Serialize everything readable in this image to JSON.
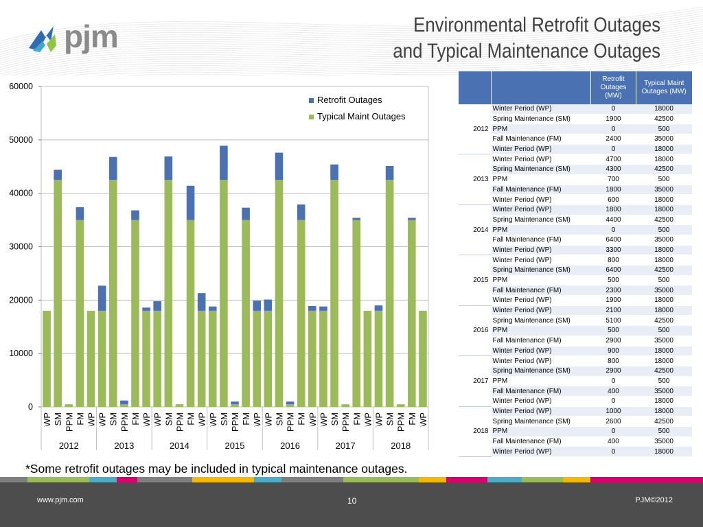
{
  "header": {
    "logo_text": "pjm",
    "title_line1": "Environmental Retrofit Outages",
    "title_line2": "and Typical Maintenance Outages"
  },
  "colors": {
    "retrofit": "#4a72b3",
    "maint": "#9bbb59",
    "footer": "#4d4d4d",
    "stripe": [
      "#7f7f7f",
      "#9bbb59",
      "#4bacc6",
      "#d7006f",
      "#7f7f7f",
      "#f5b800",
      "#4bacc6",
      "#7f7f7f",
      "#9bbb59",
      "#f5b800",
      "#d7006f",
      "#4bacc6",
      "#9bbb59",
      "#f5b800",
      "#d7006f"
    ]
  },
  "chart_data": {
    "type": "bar",
    "stacked": true,
    "ylim": [
      0,
      60000
    ],
    "yticks": [
      0,
      10000,
      20000,
      30000,
      40000,
      50000,
      60000
    ],
    "legend_position": "top-right",
    "series": [
      {
        "name": "Retrofit Outages",
        "color": "#4a72b3"
      },
      {
        "name": "Typical Maint Outages",
        "color": "#9bbb59"
      }
    ],
    "groups": [
      {
        "year": "2012",
        "bars": [
          {
            "label": "WP",
            "retrofit": 0,
            "maint": 18000
          },
          {
            "label": "SM",
            "retrofit": 1900,
            "maint": 42500
          },
          {
            "label": "PPM",
            "retrofit": 0,
            "maint": 500
          },
          {
            "label": "FM",
            "retrofit": 2400,
            "maint": 35000
          },
          {
            "label": "WP",
            "retrofit": 0,
            "maint": 18000
          }
        ]
      },
      {
        "year": "2013",
        "bars": [
          {
            "label": "WP",
            "retrofit": 4700,
            "maint": 18000
          },
          {
            "label": "SM",
            "retrofit": 4300,
            "maint": 42500
          },
          {
            "label": "PPM",
            "retrofit": 700,
            "maint": 500
          },
          {
            "label": "FM",
            "retrofit": 1800,
            "maint": 35000
          },
          {
            "label": "WP",
            "retrofit": 600,
            "maint": 18000
          }
        ]
      },
      {
        "year": "2014",
        "bars": [
          {
            "label": "WP",
            "retrofit": 1800,
            "maint": 18000
          },
          {
            "label": "SM",
            "retrofit": 4400,
            "maint": 42500
          },
          {
            "label": "PPM",
            "retrofit": 0,
            "maint": 500
          },
          {
            "label": "FM",
            "retrofit": 6400,
            "maint": 35000
          },
          {
            "label": "WP",
            "retrofit": 3300,
            "maint": 18000
          }
        ]
      },
      {
        "year": "2015",
        "bars": [
          {
            "label": "WP",
            "retrofit": 800,
            "maint": 18000
          },
          {
            "label": "SM",
            "retrofit": 6400,
            "maint": 42500
          },
          {
            "label": "PPM",
            "retrofit": 500,
            "maint": 500
          },
          {
            "label": "FM",
            "retrofit": 2300,
            "maint": 35000
          },
          {
            "label": "WP",
            "retrofit": 1900,
            "maint": 18000
          }
        ]
      },
      {
        "year": "2016",
        "bars": [
          {
            "label": "WP",
            "retrofit": 2100,
            "maint": 18000
          },
          {
            "label": "SM",
            "retrofit": 5100,
            "maint": 42500
          },
          {
            "label": "PPM",
            "retrofit": 500,
            "maint": 500
          },
          {
            "label": "FM",
            "retrofit": 2900,
            "maint": 35000
          },
          {
            "label": "WP",
            "retrofit": 900,
            "maint": 18000
          }
        ]
      },
      {
        "year": "2017",
        "bars": [
          {
            "label": "WP",
            "retrofit": 800,
            "maint": 18000
          },
          {
            "label": "SM",
            "retrofit": 2900,
            "maint": 42500
          },
          {
            "label": "PPM",
            "retrofit": 0,
            "maint": 500
          },
          {
            "label": "FM",
            "retrofit": 400,
            "maint": 35000
          },
          {
            "label": "WP",
            "retrofit": 0,
            "maint": 18000
          }
        ]
      },
      {
        "year": "2018",
        "bars": [
          {
            "label": "WP",
            "retrofit": 1000,
            "maint": 18000
          },
          {
            "label": "SM",
            "retrofit": 2600,
            "maint": 42500
          },
          {
            "label": "PPM",
            "retrofit": 0,
            "maint": 500
          },
          {
            "label": "FM",
            "retrofit": 400,
            "maint": 35000
          },
          {
            "label": "WP",
            "retrofit": 0,
            "maint": 18000
          }
        ]
      }
    ]
  },
  "table": {
    "headers": [
      "",
      "",
      "Retrofit Outages (MW)",
      "Typical Maint Outages (MW)"
    ],
    "period_names": {
      "WP": "Winter Period (WP)",
      "SM": "Spring Maintenance (SM)",
      "PPM": "PPM",
      "FM": "Fall Maintenance (FM)"
    }
  },
  "footnote": "*Some retrofit outages may be included in typical maintenance outages.",
  "footer": {
    "url": "www.pjm.com",
    "page": "10",
    "copyright": "PJM©2012"
  }
}
